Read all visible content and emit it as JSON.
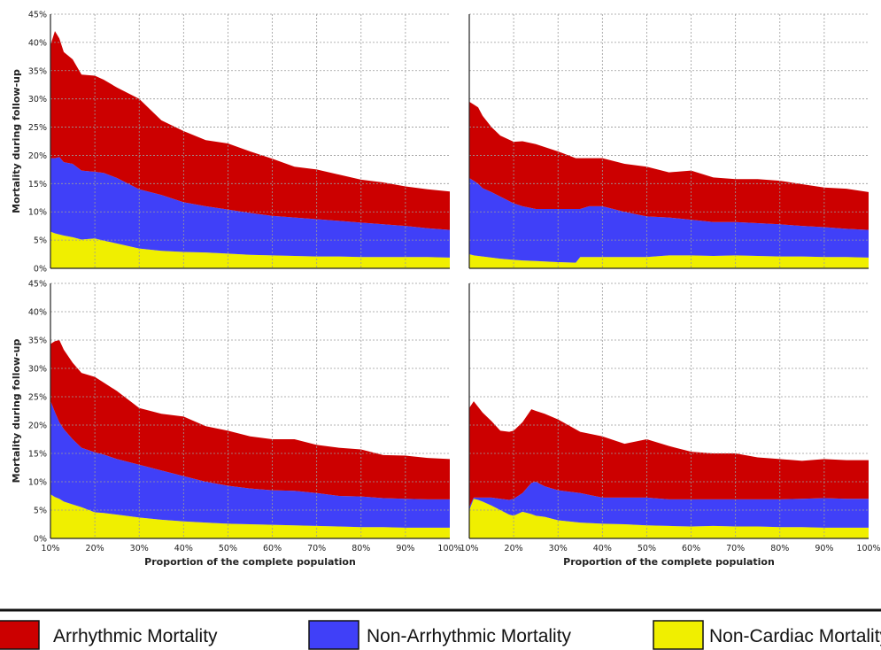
{
  "chart_data": [
    {
      "type": "area",
      "stacked": true,
      "x": [
        10,
        11,
        12,
        13,
        15,
        17,
        20,
        22,
        25,
        30,
        35,
        40,
        45,
        50,
        55,
        60,
        65,
        70,
        75,
        80,
        85,
        90,
        95,
        100
      ],
      "series": [
        {
          "name": "Non-Cardiac Mortality",
          "color": "#f0ef00",
          "values": [
            6.5,
            6.2,
            6.0,
            5.8,
            5.5,
            5.1,
            5.3,
            4.9,
            4.4,
            3.5,
            3.1,
            2.9,
            2.8,
            2.6,
            2.4,
            2.3,
            2.2,
            2.1,
            2.1,
            2.0,
            2.0,
            2.0,
            2.0,
            1.9
          ]
        },
        {
          "name": "Non-Arrhythmic Mortality",
          "color": "#4040f8",
          "values": [
            13.0,
            13.3,
            13.7,
            13.0,
            13.0,
            12.2,
            11.8,
            12.0,
            11.6,
            10.5,
            9.9,
            8.8,
            8.2,
            7.8,
            7.4,
            7.0,
            6.8,
            6.6,
            6.3,
            6.1,
            5.8,
            5.5,
            5.1,
            4.9
          ]
        },
        {
          "name": "Arrhythmic Mortality",
          "color": "#cc0000",
          "values": [
            20.0,
            22.5,
            21.0,
            19.5,
            18.5,
            17.0,
            17.0,
            16.5,
            16.0,
            16.0,
            13.2,
            12.6,
            11.7,
            11.7,
            10.9,
            10.1,
            9.0,
            8.8,
            8.2,
            7.6,
            7.4,
            7.0,
            6.9,
            6.8
          ]
        }
      ],
      "ylim": [
        0,
        45
      ],
      "xlim": [
        10,
        100
      ],
      "ylabel": "Mortality during follow-up",
      "xlabel": "",
      "grid": true
    },
    {
      "type": "area",
      "stacked": true,
      "x": [
        10,
        11,
        12,
        13,
        15,
        17,
        20,
        22,
        25,
        30,
        34,
        35,
        37,
        40,
        45,
        50,
        55,
        60,
        65,
        70,
        75,
        80,
        85,
        90,
        95,
        100
      ],
      "series": [
        {
          "name": "Non-Cardiac Mortality",
          "color": "#f0ef00",
          "values": [
            2.5,
            2.3,
            2.2,
            2.1,
            1.9,
            1.7,
            1.5,
            1.4,
            1.3,
            1.1,
            1.0,
            2.0,
            2.0,
            2.0,
            2.0,
            2.0,
            2.3,
            2.3,
            2.2,
            2.3,
            2.2,
            2.1,
            2.1,
            2.0,
            2.0,
            1.9
          ]
        },
        {
          "name": "Non-Arrhythmic Mortality",
          "color": "#4040f8",
          "values": [
            13.5,
            13.2,
            12.8,
            12.1,
            11.6,
            11.0,
            10.0,
            9.6,
            9.2,
            9.4,
            9.5,
            8.5,
            9.0,
            9.0,
            8.0,
            7.2,
            6.7,
            6.3,
            6.0,
            5.9,
            5.8,
            5.7,
            5.4,
            5.3,
            5.0,
            4.9
          ]
        },
        {
          "name": "Arrhythmic Mortality",
          "color": "#cc0000",
          "values": [
            13.5,
            13.5,
            13.5,
            12.8,
            11.5,
            10.8,
            10.9,
            11.5,
            11.5,
            10.2,
            9.0,
            9.0,
            8.5,
            8.5,
            8.5,
            8.8,
            8.0,
            8.7,
            7.9,
            7.6,
            7.8,
            7.7,
            7.4,
            7.0,
            7.1,
            6.7
          ]
        }
      ],
      "ylim": [
        0,
        45
      ],
      "xlim": [
        10,
        100
      ],
      "ylabel": "",
      "xlabel": "",
      "grid": true
    },
    {
      "type": "area",
      "stacked": true,
      "x": [
        10,
        11,
        12,
        13,
        15,
        17,
        20,
        22,
        25,
        30,
        35,
        40,
        45,
        50,
        55,
        60,
        65,
        70,
        75,
        80,
        85,
        90,
        95,
        100
      ],
      "series": [
        {
          "name": "Non-Cardiac Mortality",
          "color": "#f0ef00",
          "values": [
            7.8,
            7.3,
            7.0,
            6.5,
            6.0,
            5.5,
            4.6,
            4.5,
            4.2,
            3.7,
            3.3,
            3.0,
            2.8,
            2.6,
            2.5,
            2.4,
            2.3,
            2.2,
            2.1,
            2.0,
            2.0,
            1.9,
            1.9,
            1.9
          ]
        },
        {
          "name": "Non-Arrhythmic Mortality",
          "color": "#4040f8",
          "values": [
            16.5,
            15.0,
            13.5,
            12.8,
            11.5,
            10.5,
            10.6,
            10.3,
            9.8,
            9.3,
            8.7,
            8.0,
            7.2,
            6.7,
            6.3,
            6.1,
            6.1,
            5.8,
            5.4,
            5.4,
            5.1,
            5.1,
            5.0,
            5.0
          ]
        },
        {
          "name": "Arrhythmic Mortality",
          "color": "#cc0000",
          "values": [
            10.0,
            12.5,
            14.5,
            14.0,
            13.5,
            13.2,
            13.3,
            12.7,
            12.0,
            10.0,
            10.0,
            10.5,
            9.8,
            9.7,
            9.2,
            9.0,
            9.1,
            8.5,
            8.5,
            8.3,
            7.6,
            7.6,
            7.3,
            7.1
          ]
        }
      ],
      "ylim": [
        0,
        45
      ],
      "xlim": [
        10,
        100
      ],
      "ylabel": "Mortality during follow-up",
      "xlabel": "Proportion of the complete population",
      "grid": true
    },
    {
      "type": "area",
      "stacked": true,
      "x": [
        10,
        11,
        12,
        13,
        15,
        17,
        19,
        20,
        22,
        24,
        25,
        27,
        30,
        35,
        40,
        45,
        50,
        55,
        60,
        65,
        70,
        75,
        80,
        85,
        90,
        95,
        100
      ],
      "series": [
        {
          "name": "Non-Cardiac Mortality",
          "color": "#f0ef00",
          "values": [
            5.0,
            7.0,
            6.8,
            6.5,
            5.8,
            5.0,
            4.2,
            4.0,
            4.7,
            4.3,
            4.0,
            3.8,
            3.2,
            2.8,
            2.6,
            2.5,
            2.3,
            2.2,
            2.1,
            2.2,
            2.1,
            2.1,
            2.0,
            2.0,
            1.9,
            1.9,
            1.9
          ]
        },
        {
          "name": "Non-Arrhythmic Mortality",
          "color": "#4040f8",
          "values": [
            0.5,
            0.2,
            0.4,
            0.7,
            1.4,
            2.0,
            2.6,
            3.0,
            3.3,
            5.5,
            6.0,
            5.4,
            5.3,
            5.2,
            4.6,
            4.7,
            4.9,
            4.7,
            4.8,
            4.7,
            4.8,
            4.8,
            4.9,
            5.0,
            5.2,
            5.1,
            5.1
          ]
        },
        {
          "name": "Arrhythmic Mortality",
          "color": "#cc0000",
          "values": [
            17.5,
            17.0,
            16.0,
            15.0,
            13.5,
            12.0,
            12.0,
            12.0,
            12.5,
            13.0,
            12.5,
            12.8,
            12.5,
            10.8,
            10.8,
            9.5,
            10.3,
            9.4,
            8.4,
            8.1,
            8.1,
            7.4,
            7.1,
            6.7,
            6.9,
            6.8,
            6.8
          ]
        }
      ],
      "ylim": [
        0,
        45
      ],
      "xlim": [
        10,
        100
      ],
      "ylabel": "",
      "xlabel": "Proportion of the complete population",
      "grid": true
    }
  ],
  "axes": {
    "y_ticks": [
      "0%",
      "5%",
      "10%",
      "15%",
      "20%",
      "25%",
      "30%",
      "35%",
      "40%",
      "45%"
    ],
    "x_ticks": [
      "10%",
      "20%",
      "30%",
      "40%",
      "50%",
      "60%",
      "70%",
      "80%",
      "90%",
      "100%"
    ]
  },
  "legend": {
    "placement": "bottom",
    "items": [
      {
        "label": "Arrhythmic  Mortality",
        "color": "#cc0000"
      },
      {
        "label": "Non-Arrhythmic Mortality",
        "color": "#4040f8"
      },
      {
        "label": "Non-Cardiac Mortality",
        "color": "#f0ef00"
      }
    ]
  }
}
